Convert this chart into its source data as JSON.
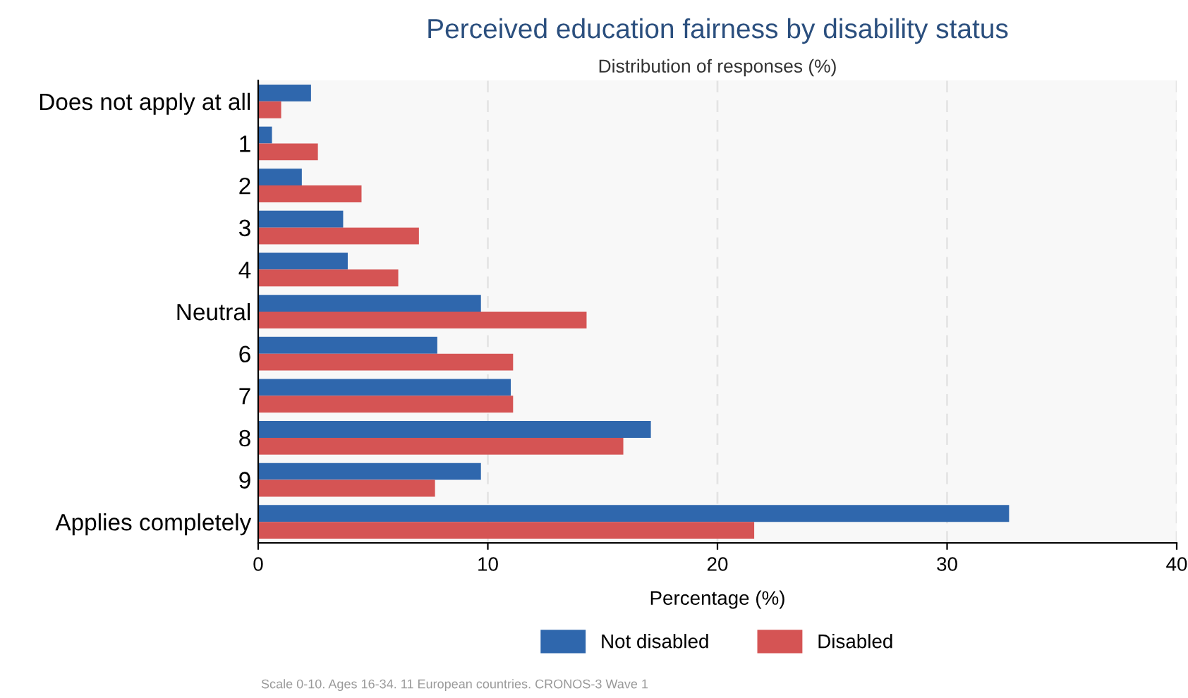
{
  "chart_data": {
    "type": "bar",
    "orientation": "horizontal",
    "title": "Perceived education fairness by disability status",
    "subtitle": "Distribution of responses (%)",
    "xlabel": "Percentage (%)",
    "categories": [
      "Does not apply at all",
      "1",
      "2",
      "3",
      "4",
      "Neutral",
      "6",
      "7",
      "8",
      "9",
      "Applies completely"
    ],
    "series": [
      {
        "name": "Not disabled",
        "color": "#2f67ad",
        "values": [
          2.3,
          0.6,
          1.9,
          3.7,
          3.9,
          9.7,
          7.8,
          11.0,
          17.1,
          9.7,
          32.7
        ]
      },
      {
        "name": "Disabled",
        "color": "#d55454",
        "values": [
          1.0,
          2.6,
          4.5,
          7.0,
          6.1,
          14.3,
          11.1,
          11.1,
          15.9,
          7.7,
          21.6
        ]
      }
    ],
    "xlim": [
      0,
      40
    ],
    "xticks": [
      0,
      10,
      20,
      30,
      40
    ],
    "grid": "x",
    "legend": "bottom",
    "annotations": [
      "Scale 0-10. Ages 16-34. 11 European countries. CRONOS-3 Wave 1"
    ]
  }
}
